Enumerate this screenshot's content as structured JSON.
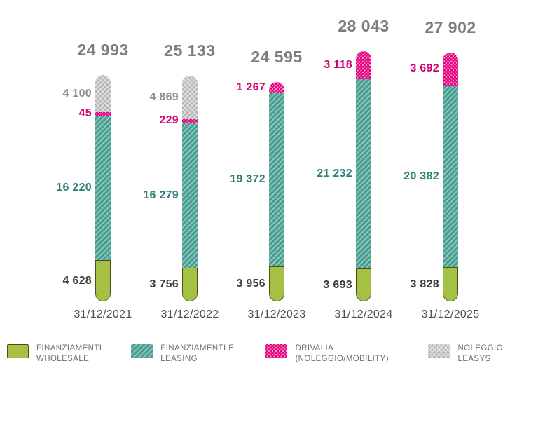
{
  "chart_data": {
    "type": "bar",
    "stacked": true,
    "grid": false,
    "legend_position": "bottom",
    "categories": [
      "31/12/2021",
      "31/12/2022",
      "31/12/2023",
      "31/12/2024",
      "31/12/2025"
    ],
    "totals": [
      24993,
      25133,
      24595,
      28043,
      27902
    ],
    "totals_formatted": [
      "24 993",
      "25 133",
      "24 595",
      "28 043",
      "27 902"
    ],
    "series": [
      {
        "key": "wholesale",
        "name": "FINANZIAMENTI WHOLESALE",
        "values": [
          4628,
          3756,
          3956,
          3693,
          3828
        ],
        "labels": [
          "4 628",
          "3 756",
          "3 956",
          "3 693",
          "3 828"
        ],
        "color": "#a5c144"
      },
      {
        "key": "leasing",
        "name": "FINANZIAMENTI E LEASING",
        "values": [
          16220,
          16279,
          19372,
          21232,
          20382
        ],
        "labels": [
          "16 220",
          "16 279",
          "19 372",
          "21 232",
          "20 382"
        ],
        "color": "#4a9e90"
      },
      {
        "key": "drivalia",
        "name": "DRIVALIA (NOLEGGIO/MOBILITY)",
        "values": [
          45,
          229,
          1267,
          3118,
          3692
        ],
        "labels": [
          "45",
          "229",
          "1 267",
          "3 118",
          "3 692"
        ],
        "color": "#e6007e"
      },
      {
        "key": "leasys",
        "name": "NOLEGGIO LEASYS",
        "values": [
          4100,
          4869,
          0,
          0,
          0
        ],
        "labels": [
          "4 100",
          "4 869",
          "",
          "",
          ""
        ],
        "color": "#b7b7b7"
      }
    ],
    "legend": [
      "FINANZIAMENTI WHOLESALE",
      "FINANZIAMENTI E LEASING",
      "DRIVALIA (NOLEGGIO/MOBILITY)",
      "NOLEGGIO LEASYS"
    ],
    "colors": {
      "wholesale": "#a5c144",
      "wholesale_border": "#4b4e1f",
      "leasing": "#4a9e90",
      "leasing_light": "#8fc8be",
      "drivalia": "#e6007e",
      "drivalia_light": "#f799c8",
      "leasys": "#b7b7b7",
      "total_text": "#7d7d7d",
      "wholesale_text": "#3c3c3c",
      "leasing_text": "#2d7f75",
      "drivalia_text": "#d4006e",
      "leasys_text": "#8c8c8c",
      "date_text": "#4f4f4f",
      "legend_text": "#6f6f6f"
    }
  }
}
